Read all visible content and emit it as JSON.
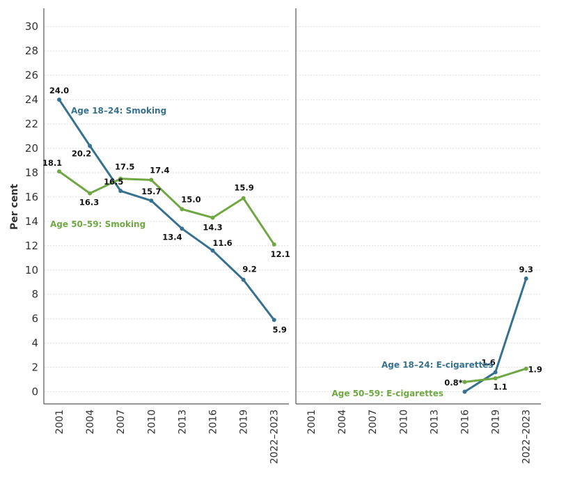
{
  "chart_data": {
    "type": "line",
    "ylabel": "Per cent",
    "ylim": [
      -1,
      31.5
    ],
    "yticks": [
      "0",
      "2",
      "4",
      "6",
      "8",
      "10",
      "12",
      "14",
      "16",
      "18",
      "20",
      "22",
      "24",
      "26",
      "28",
      "30"
    ],
    "panels": [
      {
        "id": "smoking",
        "categories": [
          "2001",
          "2004",
          "2007",
          "2010",
          "2013",
          "2016",
          "2019",
          "2022–2023"
        ],
        "series": [
          {
            "name": "Age 18–24: Smoking",
            "color": "#36718f",
            "values": [
              24.0,
              20.2,
              16.5,
              15.7,
              13.4,
              11.6,
              9.2,
              5.9
            ],
            "labels": [
              "24.0",
              "20.2",
              "16.5",
              "15.7",
              "13.4",
              "11.6",
              "9.2",
              "5.9"
            ]
          },
          {
            "name": "Age 50–59: Smoking",
            "color": "#6fa843",
            "values": [
              18.1,
              16.3,
              17.5,
              17.4,
              15.0,
              14.3,
              15.9,
              12.1
            ],
            "labels": [
              "18.1",
              "16.3",
              "17.5",
              "17.4",
              "15.0",
              "14.3",
              "15.9",
              "12.1"
            ]
          }
        ]
      },
      {
        "id": "ecig",
        "categories": [
          "2001",
          "2004",
          "2007",
          "2010",
          "2013",
          "2016",
          "2019",
          "2022–2023"
        ],
        "series": [
          {
            "name": "Age 18–24: E-cigarettes",
            "color": "#36718f",
            "values": [
              null,
              null,
              null,
              null,
              null,
              0.0,
              1.6,
              9.3
            ],
            "labels": [
              null,
              null,
              null,
              null,
              null,
              null,
              "1.6",
              "9.3"
            ]
          },
          {
            "name": "Age 50–59: E-cigarettes",
            "color": "#6fa843",
            "values": [
              null,
              null,
              null,
              null,
              null,
              0.8,
              1.1,
              1.9
            ],
            "labels": [
              null,
              null,
              null,
              null,
              null,
              "0.8*",
              "1.1",
              "1.9"
            ]
          }
        ]
      }
    ]
  }
}
